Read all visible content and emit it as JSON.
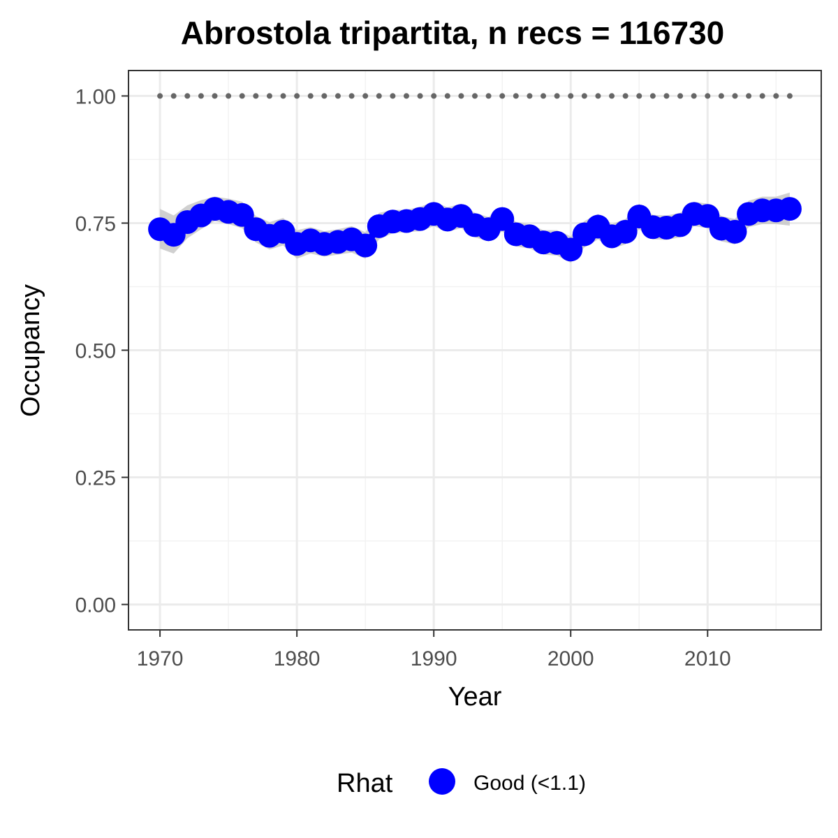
{
  "chart_data": {
    "type": "line",
    "title": "Abrostola tripartita, n recs = 116730",
    "xlabel": "Year",
    "ylabel": "Occupancy",
    "xlim": [
      1967.7,
      2018.3
    ],
    "ylim": [
      -0.05,
      1.05
    ],
    "x_ticks": [
      1970,
      1980,
      1990,
      2000,
      2010
    ],
    "x_tick_labels": [
      "1970",
      "1980",
      "1990",
      "2000",
      "2010"
    ],
    "y_ticks": [
      0,
      0.25,
      0.5,
      0.75,
      1.0
    ],
    "y_tick_labels": [
      "0.00",
      "0.25",
      "0.50",
      "0.75",
      "1.00"
    ],
    "grid": true,
    "legend_position": "bottom",
    "x": [
      1970,
      1971,
      1972,
      1973,
      1974,
      1975,
      1976,
      1977,
      1978,
      1979,
      1980,
      1981,
      1982,
      1983,
      1984,
      1985,
      1986,
      1987,
      1988,
      1989,
      1990,
      1991,
      1992,
      1993,
      1994,
      1995,
      1996,
      1997,
      1998,
      1999,
      2000,
      2001,
      2002,
      2003,
      2004,
      2005,
      2006,
      2007,
      2008,
      2009,
      2010,
      2011,
      2012,
      2013,
      2014,
      2015,
      2016
    ],
    "series": [
      {
        "name": "Good (<1.1)",
        "color": "#0000ff",
        "values": [
          0.738,
          0.727,
          0.752,
          0.765,
          0.778,
          0.772,
          0.766,
          0.738,
          0.725,
          0.733,
          0.709,
          0.716,
          0.709,
          0.713,
          0.718,
          0.706,
          0.744,
          0.753,
          0.754,
          0.758,
          0.768,
          0.757,
          0.764,
          0.746,
          0.738,
          0.758,
          0.728,
          0.724,
          0.712,
          0.711,
          0.698,
          0.728,
          0.743,
          0.724,
          0.733,
          0.763,
          0.742,
          0.741,
          0.746,
          0.768,
          0.764,
          0.739,
          0.733,
          0.768,
          0.775,
          0.775,
          0.778
        ],
        "lower": [
          0.7,
          0.69,
          0.72,
          0.738,
          0.754,
          0.748,
          0.74,
          0.712,
          0.698,
          0.706,
          0.68,
          0.69,
          0.684,
          0.688,
          0.692,
          0.68,
          0.718,
          0.73,
          0.732,
          0.734,
          0.744,
          0.733,
          0.74,
          0.722,
          0.714,
          0.734,
          0.704,
          0.7,
          0.688,
          0.686,
          0.672,
          0.702,
          0.718,
          0.7,
          0.708,
          0.738,
          0.718,
          0.717,
          0.722,
          0.744,
          0.74,
          0.714,
          0.708,
          0.742,
          0.748,
          0.748,
          0.745
        ],
        "upper": [
          0.778,
          0.765,
          0.785,
          0.795,
          0.802,
          0.798,
          0.792,
          0.764,
          0.752,
          0.76,
          0.736,
          0.742,
          0.734,
          0.738,
          0.744,
          0.732,
          0.77,
          0.776,
          0.776,
          0.782,
          0.792,
          0.781,
          0.788,
          0.77,
          0.762,
          0.782,
          0.752,
          0.748,
          0.736,
          0.736,
          0.724,
          0.754,
          0.768,
          0.748,
          0.758,
          0.788,
          0.766,
          0.765,
          0.77,
          0.792,
          0.788,
          0.764,
          0.758,
          0.794,
          0.802,
          0.802,
          0.81
        ]
      }
    ],
    "reference_line": {
      "y": 1.0,
      "style": "dotted",
      "color": "#666666"
    },
    "ribbon_color": "#c8c8c8"
  },
  "legend": {
    "title": "Rhat",
    "label": "Good (<1.1)",
    "color": "#0000ff"
  }
}
